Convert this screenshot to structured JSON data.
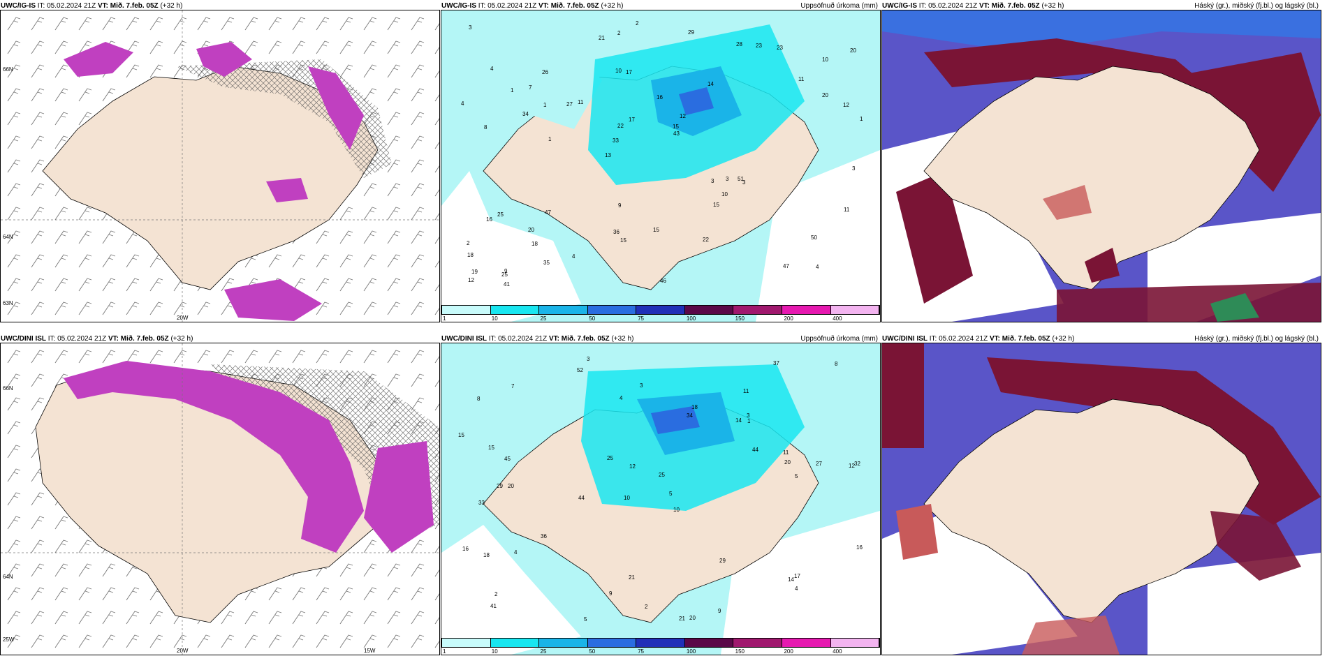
{
  "panels": [
    {
      "model": "UWC/IG-IS",
      "it_label": "IT: 05.02.2024 21Z",
      "vt_label": "VT: Mið. 7.feb. 05Z",
      "lead": "(+32 h)",
      "right_title": "",
      "grid_labels": [
        "66N",
        "64N",
        "63N",
        "20W"
      ]
    },
    {
      "model": "UWC/IG-IS",
      "it_label": "IT: 05.02.2024 21Z",
      "vt_label": "VT: Mið. 7.feb. 05Z",
      "lead": "(+32 h)",
      "right_title": "Uppsöfnuð úrkoma (mm)",
      "precip_values": [
        "4",
        "8",
        "10",
        "13",
        "14",
        "9",
        "10",
        "16",
        "25",
        "11",
        "18",
        "18",
        "17",
        "12",
        "3",
        "4",
        "2",
        "1",
        "3",
        "20",
        "33",
        "36",
        "22",
        "26",
        "28",
        "47",
        "47",
        "50",
        "51",
        "46",
        "27",
        "34",
        "15",
        "35",
        "12",
        "15",
        "19",
        "15",
        "43",
        "16",
        "11",
        "20",
        "10",
        "22",
        "20",
        "41",
        "12",
        "15",
        "23",
        "2",
        "1",
        "4",
        "7",
        "23",
        "25",
        "29",
        "21",
        "17",
        "11",
        "9",
        "4",
        "3",
        "1",
        "2",
        "3",
        "1",
        "3"
      ]
    },
    {
      "model": "UWC/IG-IS",
      "it_label": "IT: 05.02.2024 21Z",
      "vt_label": "VT: Mið. 7.feb. 05Z",
      "lead": "(+32 h)",
      "right_title": "Háský (gr.), miðský (fj.bl.) og lágský (bl.)"
    },
    {
      "model": "UWC/DINI ISL",
      "it_label": "IT: 05.02.2024 21Z",
      "vt_label": "VT: Mið. 7.feb. 05Z",
      "lead": "(+32 h)",
      "right_title": "",
      "grid_labels": [
        "66N",
        "64N",
        "20W",
        "15W",
        "25W"
      ]
    },
    {
      "model": "UWC/DINI ISL",
      "it_label": "IT: 05.02.2024 21Z",
      "vt_label": "VT: Mið. 7.feb. 05Z",
      "lead": "(+32 h)",
      "right_title": "Uppsöfnuð úrkoma (mm)",
      "precip_values": [
        "3",
        "11",
        "12",
        "10",
        "10",
        "20",
        "8",
        "14",
        "33",
        "34",
        "25",
        "41",
        "52",
        "44",
        "21",
        "20",
        "21",
        "37",
        "44",
        "36",
        "45",
        "29",
        "32",
        "27",
        "16",
        "15",
        "12",
        "20",
        "17",
        "18",
        "14",
        "18",
        "4",
        "25",
        "29",
        "16",
        "11",
        "9",
        "8",
        "3",
        "2",
        "5",
        "9",
        "7",
        "2",
        "1",
        "4",
        "3",
        "15",
        "5",
        "4",
        "5"
      ]
    },
    {
      "model": "UWC/DINI ISL",
      "it_label": "IT: 05.02.2024 21Z",
      "vt_label": "VT: Mið. 7.feb. 05Z",
      "lead": "(+32 h)",
      "right_title": "Háský (gr.), miðský (fj.bl.) og lágský (bl.)"
    }
  ],
  "legend": {
    "ticks": [
      "1",
      "10",
      "25",
      "50",
      "75",
      "100",
      "150",
      "200",
      "400"
    ],
    "colors": [
      "#c8fbfb",
      "#19e6f0",
      "#1ab4e8",
      "#2a6de0",
      "#2030b8",
      "#5a0848",
      "#a0186e",
      "#e619b0",
      "#f3b4f0"
    ]
  },
  "colors": {
    "land": "#f4e3d3",
    "sea_precip": "#b4f6f6",
    "cloud_high": "#7a1435",
    "cloud_mid": "#5a55c8",
    "cloud_low": "#3a70e0",
    "icing": "#c040c0"
  }
}
